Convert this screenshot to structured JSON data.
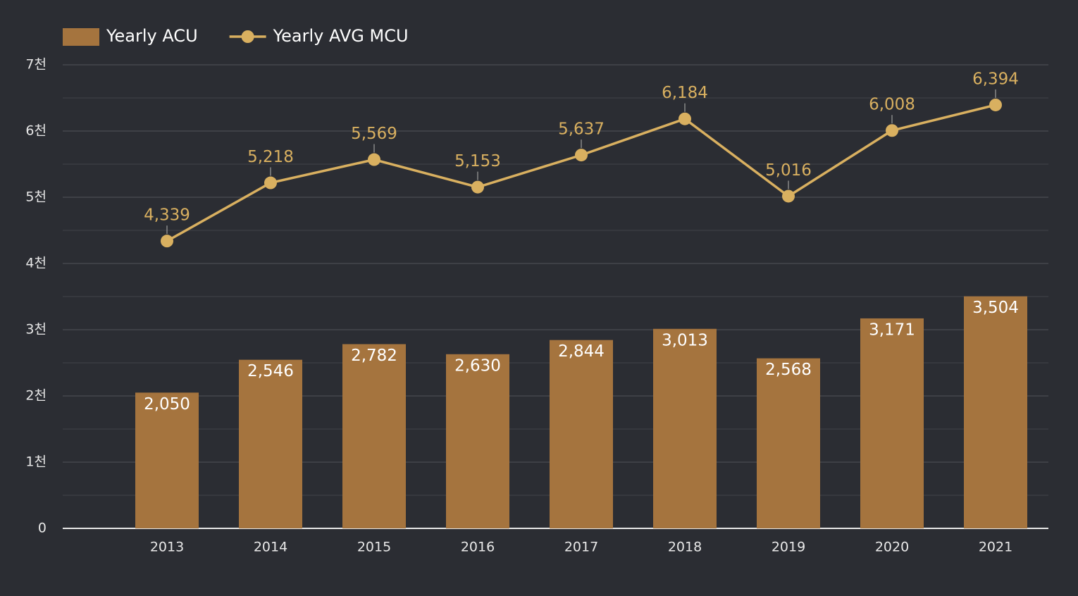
{
  "chart_data": {
    "type": "bar-line",
    "categories": [
      "2013",
      "2014",
      "2015",
      "2016",
      "2017",
      "2018",
      "2019",
      "2020",
      "2021"
    ],
    "series": [
      {
        "name": "Yearly ACU",
        "type": "bar",
        "color": "#a5743e",
        "values": [
          2050,
          2546,
          2782,
          2630,
          2844,
          3013,
          2568,
          3171,
          3504
        ],
        "value_labels": [
          "2,050",
          "2,546",
          "2,782",
          "2,630",
          "2,844",
          "3,013",
          "2,568",
          "3,171",
          "3,504"
        ]
      },
      {
        "name": "Yearly AVG MCU",
        "type": "line",
        "color": "#d9b060",
        "values": [
          4339,
          5218,
          5569,
          5153,
          5637,
          6184,
          5016,
          6008,
          6394
        ],
        "value_labels": [
          "4,339",
          "5,218",
          "5,569",
          "5,153",
          "5,637",
          "6,184",
          "5,016",
          "6,008",
          "6,394"
        ]
      }
    ],
    "ylim": [
      0,
      7000
    ],
    "yticks": [
      0,
      {
        "value": 1000,
        "label": "1천"
      },
      {
        "value": 2000,
        "label": "2천"
      },
      {
        "value": 3000,
        "label": "3천"
      },
      {
        "value": 4000,
        "label": "4천"
      },
      {
        "value": 5000,
        "label": "5천"
      },
      {
        "value": 6000,
        "label": "6천"
      },
      {
        "value": 7000,
        "label": "7천"
      }
    ],
    "grid": true,
    "legend": "top-left"
  }
}
